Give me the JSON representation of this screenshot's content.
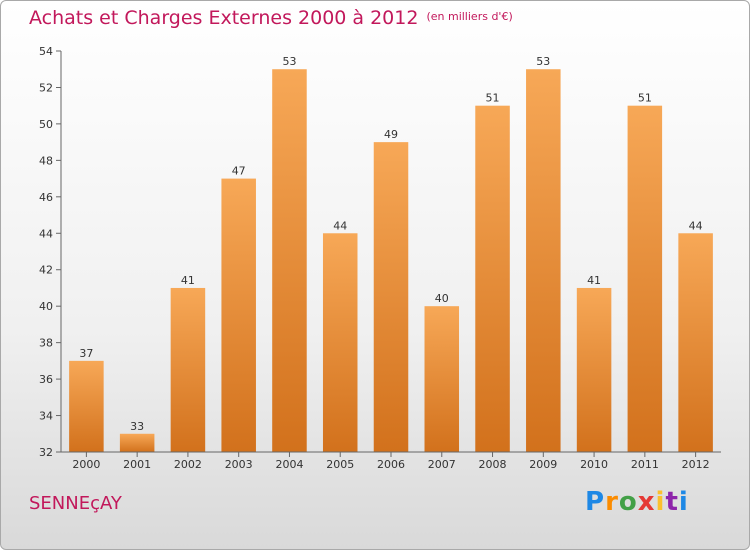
{
  "title": "Achats et Charges Externes 2000 à 2012",
  "unit": "(en milliers d'€)",
  "city": "SENNEçAY",
  "logo": {
    "letters": [
      "P",
      "r",
      "o",
      "x",
      "i",
      "t",
      "i"
    ],
    "colors": [
      "#1e88e5",
      "#fb8c00",
      "#43a047",
      "#e53935",
      "#fbc02d",
      "#8e24aa",
      "#1e88e5"
    ]
  },
  "colors": {
    "bar_light": "#f7a857",
    "bar_dark": "#d2711c",
    "title": "#c2185b"
  },
  "chart_data": {
    "type": "bar",
    "categories": [
      "2000",
      "2001",
      "2002",
      "2003",
      "2004",
      "2005",
      "2006",
      "2007",
      "2008",
      "2009",
      "2010",
      "2011",
      "2012"
    ],
    "values": [
      37,
      33,
      41,
      47,
      53,
      44,
      49,
      40,
      51,
      53,
      41,
      51,
      44
    ],
    "ylim": [
      32,
      54
    ],
    "yticks": [
      32,
      34,
      36,
      38,
      40,
      42,
      44,
      46,
      48,
      50,
      52,
      54
    ],
    "grid": false
  }
}
